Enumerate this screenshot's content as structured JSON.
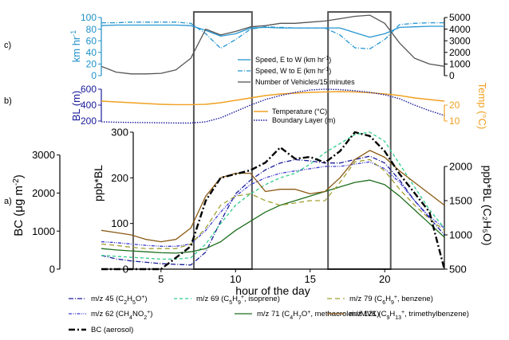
{
  "panel_labels": [
    "c)",
    "b)",
    "a)"
  ],
  "xlabel": "hour of the day",
  "x_ticks": [
    5,
    10,
    15,
    20
  ],
  "xlim": [
    1,
    24
  ],
  "highlight_windows": [
    [
      7.2,
      11.1
    ],
    [
      16.2,
      20.4
    ]
  ],
  "colors": {
    "speed": "#2596d2",
    "speed_axis": "#1e90c8",
    "vehicles": "#555555",
    "temp": "#f0a020",
    "bl": "#1a1a9a",
    "bc": "#000000",
    "m45": "#1a1a9a",
    "m62": "#3a3ad0",
    "m69": "#2ecc8a",
    "m71": "#1e6e1e",
    "m79": "#a0a030",
    "m121": "#8b5a14"
  },
  "chart_data": [
    {
      "id": "c",
      "type": "line",
      "left_axis": {
        "label": "km hr",
        "label_sup": "-1",
        "lim": [
          0,
          100
        ],
        "ticks": [
          0,
          20,
          40,
          60,
          80,
          100
        ]
      },
      "right_axis": {
        "lim": [
          0,
          5000
        ],
        "ticks": [
          0,
          1000,
          2000,
          3000,
          4000,
          5000
        ]
      },
      "legend": [
        {
          "pre": "Speed, E to W (km hr",
          "sup": "-1",
          "post": ")"
        },
        {
          "pre": "Speed, W to E (km hr",
          "sup": "-1",
          "post": ")"
        },
        {
          "pre": "Number of Vehicles/15 minutes",
          "sup": "",
          "post": ""
        }
      ],
      "x": [
        1,
        2,
        3,
        4,
        5,
        6,
        7,
        8,
        9,
        10,
        11,
        12,
        13,
        14,
        15,
        16,
        17,
        18,
        19,
        20,
        21,
        22,
        23,
        24
      ],
      "series": [
        {
          "key": "speed_ew",
          "axis": "left",
          "values": [
            86,
            87,
            87,
            87,
            87,
            87,
            86,
            78,
            68,
            72,
            82,
            83,
            82,
            82,
            82,
            82,
            82,
            74,
            66,
            72,
            83,
            84,
            85,
            85
          ]
        },
        {
          "key": "speed_we",
          "axis": "left",
          "values": [
            91,
            91,
            92,
            92,
            92,
            92,
            90,
            72,
            47,
            62,
            80,
            84,
            83,
            82,
            82,
            82,
            70,
            48,
            46,
            62,
            88,
            90,
            91,
            91
          ]
        },
        {
          "key": "vehicles",
          "axis": "right",
          "values": [
            800,
            300,
            150,
            150,
            200,
            500,
            1500,
            4000,
            3500,
            3800,
            4200,
            4300,
            4500,
            4500,
            4600,
            4700,
            4900,
            5100,
            5200,
            4500,
            2800,
            1500,
            1000,
            800
          ]
        }
      ]
    },
    {
      "id": "b",
      "type": "line",
      "left_axis": {
        "label": "BL (m)",
        "lim": [
          100,
          600
        ],
        "ticks": [
          200,
          400,
          600
        ]
      },
      "right_axis": {
        "label": "Temp (°C)",
        "lim": [
          5,
          30
        ],
        "ticks": [
          10,
          20
        ]
      },
      "legend": [
        "Temperature (°C)",
        "Boundary Layer (m)"
      ],
      "x": [
        1,
        2,
        3,
        4,
        5,
        6,
        7,
        8,
        9,
        10,
        11,
        12,
        13,
        14,
        15,
        16,
        17,
        18,
        19,
        20,
        21,
        22,
        23,
        24
      ],
      "series": [
        {
          "key": "temp",
          "axis": "right",
          "values": [
            22.5,
            22,
            21.5,
            21,
            20.5,
            20.3,
            20.3,
            20.5,
            21.5,
            23,
            24.5,
            26,
            27,
            27.5,
            28,
            28.3,
            28.5,
            28.3,
            27.8,
            27,
            26,
            24.5,
            23.5,
            22.5
          ]
        },
        {
          "key": "bl",
          "axis": "left",
          "values": [
            190,
            185,
            182,
            180,
            178,
            175,
            175,
            190,
            240,
            320,
            400,
            470,
            520,
            560,
            590,
            600,
            595,
            580,
            560,
            530,
            480,
            400,
            330,
            270
          ]
        }
      ]
    },
    {
      "id": "a",
      "type": "line",
      "left_axis": {
        "label_pre": "BC (μg m",
        "label_sup": "-2",
        "label_post": ")",
        "lim": [
          0,
          3600
        ],
        "ticks": [
          0,
          1000,
          2000,
          3000
        ]
      },
      "inner_axis": {
        "label": "ppb*BL",
        "lim": [
          0,
          300
        ],
        "ticks": [
          0,
          100,
          200,
          300
        ]
      },
      "right_axis": {
        "label": "ppb*BL (C₂H₅O)",
        "lim": [
          500,
          2500
        ],
        "ticks": [
          500,
          1000,
          1500,
          2000
        ]
      },
      "x": [
        1,
        2,
        3,
        4,
        5,
        6,
        7,
        8,
        9,
        10,
        11,
        12,
        13,
        14,
        15,
        16,
        17,
        18,
        19,
        20,
        21,
        22,
        23,
        24
      ],
      "series": [
        {
          "key": "m45",
          "name_pre": "m/z 45 (C",
          "name_rest": [
            [
              "2",
              ""
            ],
            [
              "H",
              ""
            ],
            [
              "5",
              ""
            ],
            [
              "O",
              ""
            ],
            [
              "",
              "+"
            ],
            [
              ")",
              ""
            ]
          ],
          "axis": "right",
          "values": [
            700,
            650,
            620,
            600,
            580,
            570,
            560,
            750,
            1200,
            1600,
            1800,
            1950,
            2050,
            2100,
            2080,
            2050,
            2050,
            2100,
            2150,
            2050,
            1800,
            1500,
            1250,
            1000
          ]
        },
        {
          "key": "m62",
          "axis": "inner",
          "values": [
            60,
            58,
            55,
            52,
            50,
            50,
            55,
            85,
            125,
            160,
            185,
            200,
            210,
            215,
            220,
            225,
            225,
            230,
            235,
            220,
            190,
            150,
            115,
            90
          ]
        },
        {
          "key": "m69",
          "axis": "inner",
          "values": [
            30,
            28,
            26,
            24,
            22,
            22,
            25,
            55,
            100,
            140,
            165,
            185,
            200,
            210,
            230,
            255,
            275,
            295,
            300,
            280,
            230,
            180,
            130,
            90
          ]
        },
        {
          "key": "m71",
          "axis": "inner",
          "values": [
            45,
            42,
            40,
            38,
            36,
            35,
            38,
            45,
            60,
            85,
            105,
            125,
            140,
            150,
            160,
            170,
            180,
            190,
            195,
            185,
            160,
            130,
            100,
            70
          ]
        },
        {
          "key": "m79",
          "axis": "inner",
          "values": [
            55,
            52,
            48,
            45,
            45,
            45,
            55,
            90,
            140,
            160,
            165,
            150,
            140,
            145,
            150,
            150,
            190,
            235,
            240,
            215,
            175,
            140,
            110,
            85
          ]
        },
        {
          "key": "m121",
          "axis": "inner",
          "values": [
            85,
            80,
            75,
            65,
            60,
            65,
            90,
            160,
            200,
            210,
            210,
            170,
            175,
            175,
            165,
            170,
            200,
            240,
            260,
            245,
            215,
            190,
            165,
            140
          ]
        },
        {
          "key": "bc",
          "axis": "left",
          "values": [
            0,
            0,
            0,
            0,
            0,
            300,
            600,
            1800,
            2400,
            2500,
            2600,
            2800,
            3200,
            2900,
            2950,
            2800,
            3100,
            3600,
            3500,
            3100,
            2500,
            2000,
            1500,
            0
          ]
        }
      ]
    }
  ],
  "legend_a": [
    {
      "key": "m45",
      "parts": [
        [
          "m/z 45 (C",
          ""
        ],
        [
          "2",
          "sub"
        ],
        [
          "H",
          ""
        ],
        [
          "5",
          "sub"
        ],
        [
          "O",
          ""
        ],
        [
          "+",
          "sup"
        ],
        [
          ")",
          ""
        ]
      ]
    },
    {
      "key": "m69",
      "parts": [
        [
          "m/z 69 (C",
          ""
        ],
        [
          "5",
          "sub"
        ],
        [
          "H",
          ""
        ],
        [
          "9",
          "sub"
        ],
        [
          "+",
          "sup"
        ],
        [
          ", isoprene)",
          ""
        ]
      ]
    },
    {
      "key": "m79",
      "parts": [
        [
          "m/z 79 (C",
          ""
        ],
        [
          "6",
          "sub"
        ],
        [
          "H",
          ""
        ],
        [
          "9",
          "sub"
        ],
        [
          "+",
          "sup"
        ],
        [
          ", benzene)",
          ""
        ]
      ]
    },
    {
      "key": "m62",
      "parts": [
        [
          "m/z 62 (CH",
          ""
        ],
        [
          "4",
          "sub"
        ],
        [
          "NO",
          ""
        ],
        [
          "2",
          "sub"
        ],
        [
          "+",
          "sup"
        ],
        [
          ")",
          ""
        ]
      ]
    },
    {
      "key": "m71",
      "parts": [
        [
          "m/z 71 (C",
          ""
        ],
        [
          "4",
          "sub"
        ],
        [
          "H",
          ""
        ],
        [
          "7",
          "sub"
        ],
        [
          "O",
          ""
        ],
        [
          "+",
          "sup"
        ],
        [
          ", methacrolein/MVK)",
          ""
        ]
      ]
    },
    {
      "key": "m121",
      "parts": [
        [
          "m/z 121 (C",
          ""
        ],
        [
          "9",
          "sub"
        ],
        [
          "H",
          ""
        ],
        [
          "13",
          "sub"
        ],
        [
          "+",
          "sup"
        ],
        [
          ", trimethylbenzene)",
          ""
        ]
      ]
    },
    {
      "key": "bc",
      "parts": [
        [
          "BC (aerosol)",
          ""
        ]
      ]
    }
  ]
}
